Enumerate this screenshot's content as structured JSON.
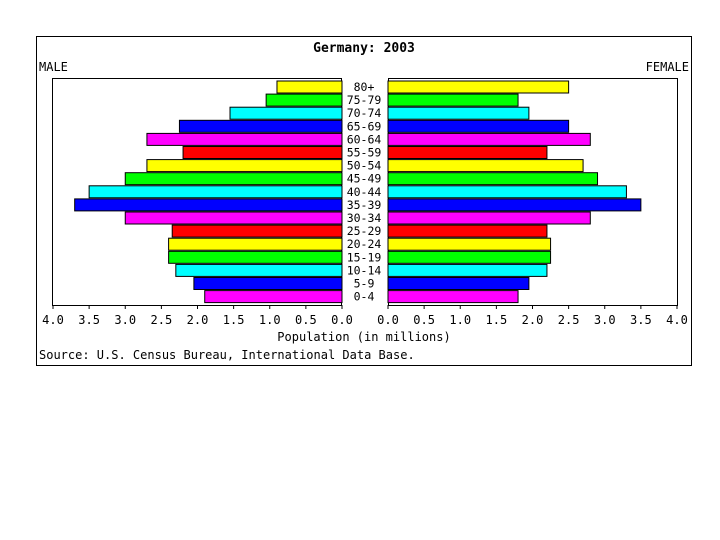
{
  "chart_data": {
    "type": "bar",
    "title": "Germany: 2003",
    "left_label": "MALE",
    "right_label": "FEMALE",
    "xlabel": "Population (in millions)",
    "source": "Source: U.S. Census Bureau, International Data Base.",
    "xlim": [
      0,
      4.0
    ],
    "ticks": [
      "4.0",
      "3.5",
      "3.0",
      "2.5",
      "2.0",
      "1.5",
      "1.0",
      "0.5",
      "0.0",
      "0.0",
      "0.5",
      "1.0",
      "1.5",
      "2.0",
      "2.5",
      "3.0",
      "3.5",
      "4.0"
    ],
    "categories": [
      "80+",
      "75-79",
      "70-74",
      "65-69",
      "60-64",
      "55-59",
      "50-54",
      "45-49",
      "40-44",
      "35-39",
      "30-34",
      "25-29",
      "20-24",
      "15-19",
      "10-14",
      "5-9",
      "0-4"
    ],
    "colors": [
      "#ffff00",
      "#00ff00",
      "#00ffff",
      "#0000ff",
      "#ff00ff",
      "#ff0000",
      "#ffff00",
      "#00ff00",
      "#00ffff",
      "#0000ff",
      "#ff00ff",
      "#ff0000",
      "#ffff00",
      "#00ff00",
      "#00ffff",
      "#0000ff",
      "#ff00ff"
    ],
    "series": [
      {
        "name": "MALE",
        "values": [
          0.9,
          1.05,
          1.55,
          2.25,
          2.7,
          2.2,
          2.7,
          3.0,
          3.5,
          3.7,
          3.0,
          2.35,
          2.4,
          2.4,
          2.3,
          2.05,
          1.9
        ]
      },
      {
        "name": "FEMALE",
        "values": [
          2.5,
          1.8,
          1.95,
          2.5,
          2.8,
          2.2,
          2.7,
          2.9,
          3.3,
          3.5,
          2.8,
          2.2,
          2.25,
          2.25,
          2.2,
          1.95,
          1.8
        ]
      }
    ]
  }
}
